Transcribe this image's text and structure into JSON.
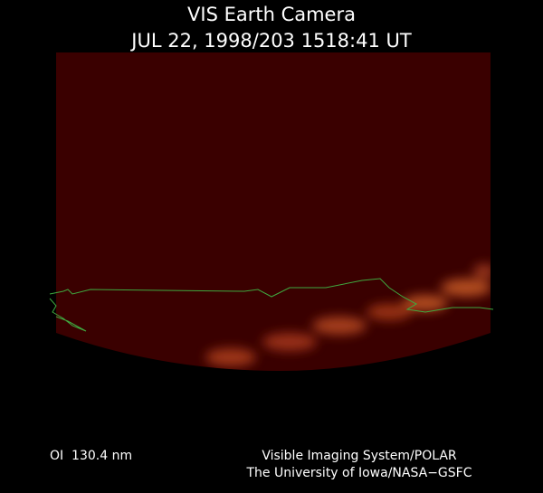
{
  "header": {
    "title": "VIS Earth Camera",
    "subtitle": "JUL 22, 1998/203 1518:41 UT"
  },
  "footer": {
    "filter": "OI  130.4 nm",
    "credit_line_1": "Visible Imaging System/POLAR",
    "credit_line_2": "The University of Iowa/NASA−GSFC"
  }
}
